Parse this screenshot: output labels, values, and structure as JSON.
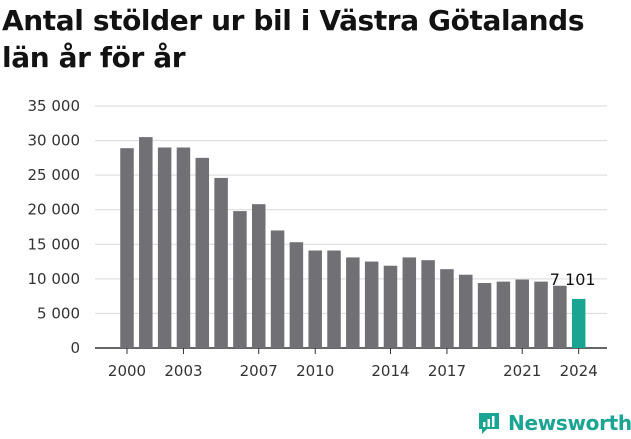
{
  "title": "Antal stölder ur bil i Västra Götalands län år för år",
  "brand": {
    "name": "Newsworthy"
  },
  "colors": {
    "bar": "#717075",
    "highlight": "#1aa593",
    "grid": "#d9d9d9",
    "axis": "#333333"
  },
  "chart_data": {
    "type": "bar",
    "title": "Antal stölder ur bil i Västra Götalands län år för år",
    "xlabel": "",
    "ylabel": "",
    "ylim": [
      0,
      35000
    ],
    "yticks": [
      0,
      5000,
      10000,
      15000,
      20000,
      25000,
      30000,
      35000
    ],
    "ytick_labels": [
      "0",
      "5 000",
      "10 000",
      "15 000",
      "20 000",
      "25 000",
      "30 000",
      "35 000"
    ],
    "xtick_labels": [
      "2000",
      "2003",
      "2007",
      "2010",
      "2014",
      "2017",
      "2021",
      "2024"
    ],
    "categories": [
      "2000",
      "2001",
      "2002",
      "2003",
      "2004",
      "2005",
      "2006",
      "2007",
      "2008",
      "2009",
      "2010",
      "2011",
      "2012",
      "2013",
      "2014",
      "2015",
      "2016",
      "2017",
      "2018",
      "2019",
      "2020",
      "2021",
      "2022",
      "2023",
      "2024"
    ],
    "values": [
      28900,
      30500,
      29000,
      29000,
      27500,
      24600,
      19800,
      20800,
      17000,
      15300,
      14100,
      14100,
      13100,
      12500,
      11900,
      13100,
      12700,
      11400,
      10600,
      9400,
      9600,
      9900,
      9600,
      9000,
      7101
    ],
    "highlight": {
      "category": "2024",
      "label": "7 101"
    },
    "grid": true
  }
}
